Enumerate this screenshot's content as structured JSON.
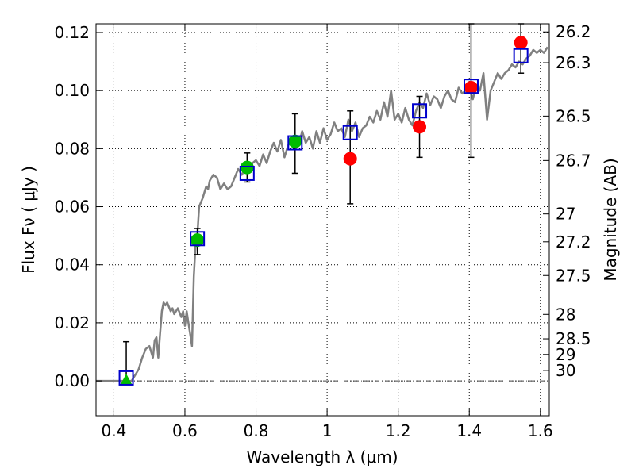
{
  "chart_data": {
    "type": "scatter",
    "title": "",
    "xlabel": "Wavelength  λ (μm)",
    "ylabel": "Flux  Fν  ( μJy )",
    "y2label": "Magnitude (AB)",
    "xlim": [
      0.35,
      1.625
    ],
    "ylim": [
      -0.012,
      0.123
    ],
    "grid": true,
    "legend": "none",
    "x_ticks": [
      0.4,
      0.6,
      0.8,
      1.0,
      1.2,
      1.4,
      1.6
    ],
    "x_tick_labels": [
      "0.4",
      "0.6",
      "0.8",
      "1",
      "1.2",
      "1.4",
      "1.6"
    ],
    "y_ticks": [
      0.0,
      0.02,
      0.04,
      0.06,
      0.08,
      0.1,
      0.12
    ],
    "y_tick_labels": [
      "0.00",
      "0.02",
      "0.04",
      "0.06",
      "0.08",
      "0.10",
      "0.12"
    ],
    "mag_ticks": [
      {
        "flux": 0.1202,
        "label": "26.2"
      },
      {
        "flux": 0.1096,
        "label": "26.3"
      },
      {
        "flux": 0.0912,
        "label": "26.5"
      },
      {
        "flux": 0.0759,
        "label": "26.7"
      },
      {
        "flux": 0.0575,
        "label": "27"
      },
      {
        "flux": 0.0479,
        "label": "27.2"
      },
      {
        "flux": 0.0363,
        "label": "27.5"
      },
      {
        "flux": 0.0229,
        "label": "28"
      },
      {
        "flux": 0.0145,
        "label": "28.5"
      },
      {
        "flux": 0.0091,
        "label": "29"
      },
      {
        "flux": 0.0036,
        "label": "30"
      }
    ],
    "series": [
      {
        "kind": "line",
        "color": "#808080",
        "x": [
          0.35,
          0.42,
          0.435,
          0.45,
          0.47,
          0.48,
          0.49,
          0.5,
          0.51,
          0.515,
          0.52,
          0.525,
          0.53,
          0.535,
          0.54,
          0.545,
          0.55,
          0.56,
          0.565,
          0.57,
          0.58,
          0.59,
          0.595,
          0.6,
          0.605,
          0.61,
          0.615,
          0.62,
          0.625,
          0.63,
          0.635,
          0.64,
          0.65,
          0.66,
          0.665,
          0.67,
          0.68,
          0.69,
          0.7,
          0.71,
          0.72,
          0.73,
          0.74,
          0.75,
          0.76,
          0.77,
          0.78,
          0.79,
          0.8,
          0.81,
          0.82,
          0.83,
          0.84,
          0.85,
          0.86,
          0.87,
          0.88,
          0.89,
          0.9,
          0.91,
          0.92,
          0.93,
          0.94,
          0.95,
          0.96,
          0.97,
          0.98,
          0.99,
          1.0,
          1.01,
          1.02,
          1.03,
          1.04,
          1.05,
          1.06,
          1.07,
          1.08,
          1.09,
          1.1,
          1.11,
          1.12,
          1.13,
          1.14,
          1.15,
          1.16,
          1.17,
          1.18,
          1.19,
          1.2,
          1.21,
          1.22,
          1.23,
          1.24,
          1.25,
          1.26,
          1.27,
          1.28,
          1.29,
          1.3,
          1.31,
          1.32,
          1.33,
          1.34,
          1.35,
          1.36,
          1.37,
          1.38,
          1.39,
          1.4,
          1.41,
          1.42,
          1.43,
          1.44,
          1.45,
          1.46,
          1.47,
          1.48,
          1.49,
          1.5,
          1.51,
          1.52,
          1.53,
          1.54,
          1.55,
          1.56,
          1.57,
          1.58,
          1.59,
          1.6,
          1.61,
          1.62
        ],
        "y": [
          0.0,
          0.0,
          0.0,
          0.0,
          0.004,
          0.008,
          0.011,
          0.012,
          0.008,
          0.014,
          0.015,
          0.008,
          0.016,
          0.024,
          0.027,
          0.026,
          0.027,
          0.024,
          0.025,
          0.023,
          0.025,
          0.022,
          0.024,
          0.019,
          0.024,
          0.02,
          0.016,
          0.012,
          0.036,
          0.047,
          0.05,
          0.06,
          0.063,
          0.067,
          0.066,
          0.069,
          0.071,
          0.07,
          0.066,
          0.068,
          0.066,
          0.067,
          0.07,
          0.073,
          0.071,
          0.073,
          0.072,
          0.075,
          0.076,
          0.074,
          0.078,
          0.075,
          0.079,
          0.082,
          0.079,
          0.083,
          0.077,
          0.081,
          0.083,
          0.08,
          0.081,
          0.086,
          0.082,
          0.084,
          0.08,
          0.086,
          0.082,
          0.087,
          0.083,
          0.085,
          0.089,
          0.086,
          0.087,
          0.084,
          0.09,
          0.086,
          0.089,
          0.084,
          0.087,
          0.088,
          0.091,
          0.089,
          0.093,
          0.09,
          0.096,
          0.091,
          0.1,
          0.09,
          0.092,
          0.089,
          0.094,
          0.09,
          0.088,
          0.093,
          0.096,
          0.094,
          0.099,
          0.095,
          0.098,
          0.097,
          0.094,
          0.098,
          0.1,
          0.097,
          0.096,
          0.101,
          0.099,
          0.1,
          0.101,
          0.097,
          0.102,
          0.1,
          0.106,
          0.09,
          0.1,
          0.103,
          0.106,
          0.104,
          0.106,
          0.107,
          0.109,
          0.108,
          0.11,
          0.109,
          0.111,
          0.112,
          0.114,
          0.113,
          0.114,
          0.113,
          0.115
        ]
      },
      {
        "kind": "open-square",
        "color": "#0000cc",
        "x": [
          0.435,
          0.635,
          0.775,
          0.91,
          1.065,
          1.26,
          1.405,
          1.545
        ],
        "y": [
          0.001,
          0.049,
          0.0715,
          0.082,
          0.0855,
          0.093,
          0.1015,
          0.112
        ]
      },
      {
        "kind": "filled-circle",
        "color": "#00bb00",
        "x": [
          0.635,
          0.775,
          0.91
        ],
        "y": [
          0.0485,
          0.0735,
          0.0825
        ]
      },
      {
        "kind": "filled-triangle",
        "color": "#00bb00",
        "x": [
          0.435
        ],
        "y": [
          0.0
        ]
      },
      {
        "kind": "filled-circle",
        "color": "#ff0000",
        "x": [
          1.065,
          1.26,
          1.405,
          1.545
        ],
        "y": [
          0.0765,
          0.0875,
          0.101,
          0.1165
        ]
      },
      {
        "kind": "error-bars",
        "color": "#000000",
        "x": [
          0.435,
          0.635,
          0.775,
          0.91,
          1.065,
          1.26,
          1.405,
          1.545
        ],
        "y_low": [
          0.0,
          0.0435,
          0.0685,
          0.0715,
          0.061,
          0.077,
          0.077,
          0.106
        ],
        "y_high": [
          0.0135,
          0.0525,
          0.0785,
          0.092,
          0.093,
          0.098,
          0.123,
          0.123
        ]
      }
    ]
  }
}
